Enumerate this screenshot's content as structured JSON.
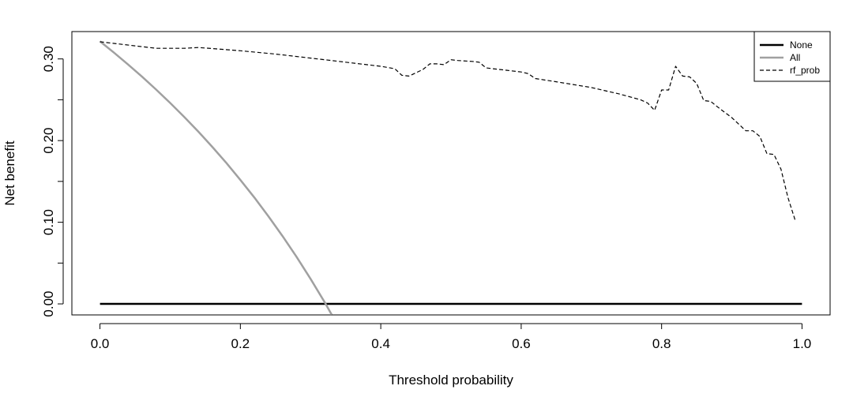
{
  "chart_data": {
    "type": "line",
    "title": "",
    "xlabel": "Threshold probability",
    "ylabel": "Net benefit",
    "xlim": [
      -0.04,
      1.04
    ],
    "ylim": [
      -0.0135,
      0.3335
    ],
    "x_ticks": [
      0.0,
      0.2,
      0.4,
      0.6,
      0.8,
      1.0
    ],
    "x_tick_labels": [
      "0.0",
      "0.2",
      "0.4",
      "0.6",
      "0.8",
      "1.0"
    ],
    "y_ticks": [
      0.0,
      0.05,
      0.1,
      0.15,
      0.2,
      0.25,
      0.3
    ],
    "y_tick_labels": [
      "0.00",
      "",
      "0.10",
      "",
      "0.20",
      "",
      "0.30"
    ],
    "grid": false,
    "legend": "top-right",
    "series": [
      {
        "name": "None",
        "color": "#000000",
        "style": "solid",
        "x": [
          0.0,
          1.0
        ],
        "y": [
          0.0,
          0.0
        ]
      },
      {
        "name": "All",
        "color": "#a0a0a0",
        "style": "solid",
        "x": [
          0.0,
          0.02,
          0.04,
          0.06,
          0.08,
          0.1,
          0.12,
          0.14,
          0.16,
          0.18,
          0.2,
          0.22,
          0.24,
          0.26,
          0.28,
          0.3,
          0.32,
          0.33
        ],
        "y": [
          0.3215,
          0.3077,
          0.2932,
          0.2782,
          0.2625,
          0.2461,
          0.229,
          0.2111,
          0.1923,
          0.1727,
          0.1519,
          0.1302,
          0.1072,
          0.0831,
          0.0577,
          0.0307,
          0.0022,
          -0.0131
        ]
      },
      {
        "name": "rf_prob",
        "color": "#000000",
        "style": "dashed",
        "x": [
          0.0,
          0.02,
          0.05,
          0.08,
          0.1,
          0.12,
          0.14,
          0.17,
          0.2,
          0.25,
          0.3,
          0.35,
          0.4,
          0.42,
          0.43,
          0.44,
          0.46,
          0.47,
          0.48,
          0.49,
          0.5,
          0.51,
          0.53,
          0.54,
          0.55,
          0.56,
          0.58,
          0.6,
          0.61,
          0.62,
          0.65,
          0.7,
          0.74,
          0.77,
          0.78,
          0.79,
          0.8,
          0.81,
          0.82,
          0.83,
          0.84,
          0.85,
          0.86,
          0.87,
          0.88,
          0.9,
          0.92,
          0.93,
          0.94,
          0.95,
          0.96,
          0.97,
          0.98,
          0.99
        ],
        "y": [
          0.321,
          0.319,
          0.316,
          0.313,
          0.313,
          0.313,
          0.314,
          0.312,
          0.31,
          0.306,
          0.301,
          0.296,
          0.291,
          0.288,
          0.28,
          0.279,
          0.287,
          0.294,
          0.294,
          0.293,
          0.299,
          0.298,
          0.297,
          0.296,
          0.289,
          0.288,
          0.286,
          0.284,
          0.282,
          0.276,
          0.272,
          0.265,
          0.257,
          0.25,
          0.246,
          0.237,
          0.262,
          0.262,
          0.291,
          0.279,
          0.278,
          0.27,
          0.249,
          0.248,
          0.241,
          0.228,
          0.212,
          0.212,
          0.205,
          0.184,
          0.183,
          0.165,
          0.13,
          0.103
        ]
      }
    ]
  }
}
